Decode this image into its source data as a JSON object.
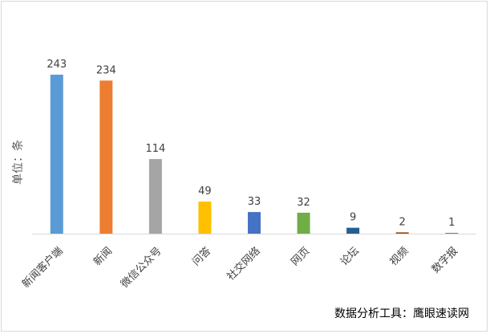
{
  "chart_data": {
    "type": "bar",
    "categories": [
      "新闻客户端",
      "新闻",
      "微信公众号",
      "问答",
      "社交网络",
      "网页",
      "论坛",
      "视频",
      "数字报"
    ],
    "values": [
      243,
      234,
      114,
      49,
      33,
      32,
      9,
      2,
      1
    ],
    "colors": [
      "#5b9bd5",
      "#ed7d31",
      "#a5a5a5",
      "#ffc000",
      "#4472c4",
      "#70ad47",
      "#255e91",
      "#9e480e",
      "#636363"
    ],
    "ylabel": "单位：条",
    "ylim": [
      0,
      260
    ],
    "grid": false,
    "legend": "none"
  },
  "source_text": "数据分析工具：鹰眼速读网"
}
